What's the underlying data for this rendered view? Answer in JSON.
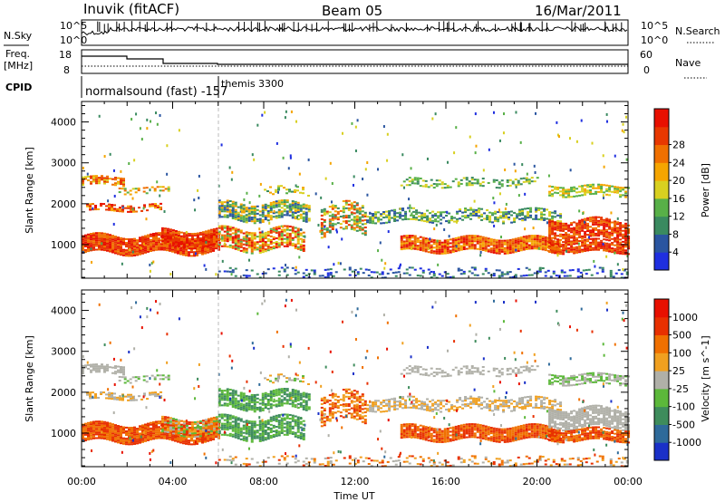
{
  "header": {
    "title_left": "Inuvik (fitACF)",
    "title_center": "Beam 05",
    "title_right": "16/Mar/2011"
  },
  "noise_panel": {
    "left_label": "N.Sky",
    "right_label": "N.Search",
    "left_ticks": [
      "10^5",
      "10^0"
    ],
    "right_ticks": [
      "10^5",
      "10^0"
    ]
  },
  "freq_panel": {
    "left_label_1": "Freq.",
    "left_label_2": "[MHz]",
    "right_label": "Nave",
    "left_ticks": [
      "18",
      "8"
    ],
    "right_ticks": [
      "60",
      "0"
    ]
  },
  "cpid_panel": {
    "label": "CPID",
    "program_1": "normalsound (fast) -157",
    "program_2": "themis 3300"
  },
  "colors": {
    "power_scale": [
      "#1f2fe0",
      "#2a55a0",
      "#3a8a60",
      "#58b048",
      "#d8d020",
      "#f5a500",
      "#f07000",
      "#e83800",
      "#e81000"
    ],
    "velocity_scale": [
      "#1a30c8",
      "#2e6a9a",
      "#3e8c5c",
      "#5cb83a",
      "#b0b0a8",
      "#f0a020",
      "#f07000",
      "#e83000",
      "#e81000"
    ]
  },
  "chart_data": [
    {
      "type": "heatmap",
      "name": "power",
      "ylabel": "Slant Range [km]",
      "yticks": [
        1000,
        2000,
        3000,
        4000
      ],
      "ylim": [
        180,
        4500
      ],
      "xticks": [
        "00:00",
        "04:00",
        "08:00",
        "12:00",
        "16:00",
        "20:00",
        "00:00"
      ],
      "xlim_hours": [
        0,
        24
      ],
      "colorbar": {
        "label": "Power [dB]",
        "ticks": [
          "4",
          "8",
          "12",
          "16",
          "20",
          "24",
          "28"
        ]
      }
    },
    {
      "type": "heatmap",
      "name": "velocity",
      "ylabel": "Slant Range [km]",
      "yticks": [
        1000,
        2000,
        3000,
        4000
      ],
      "ylim": [
        180,
        4500
      ],
      "xticks": [
        "00:00",
        "04:00",
        "08:00",
        "12:00",
        "16:00",
        "20:00",
        "00:00"
      ],
      "xlabel": "Time UT",
      "xlim_hours": [
        0,
        24
      ],
      "colorbar": {
        "label": "Velocity [m s^-1]",
        "ticks": [
          "1000",
          "500",
          "100",
          "25",
          "-25",
          "-100",
          "-500",
          "-1000"
        ]
      }
    }
  ]
}
